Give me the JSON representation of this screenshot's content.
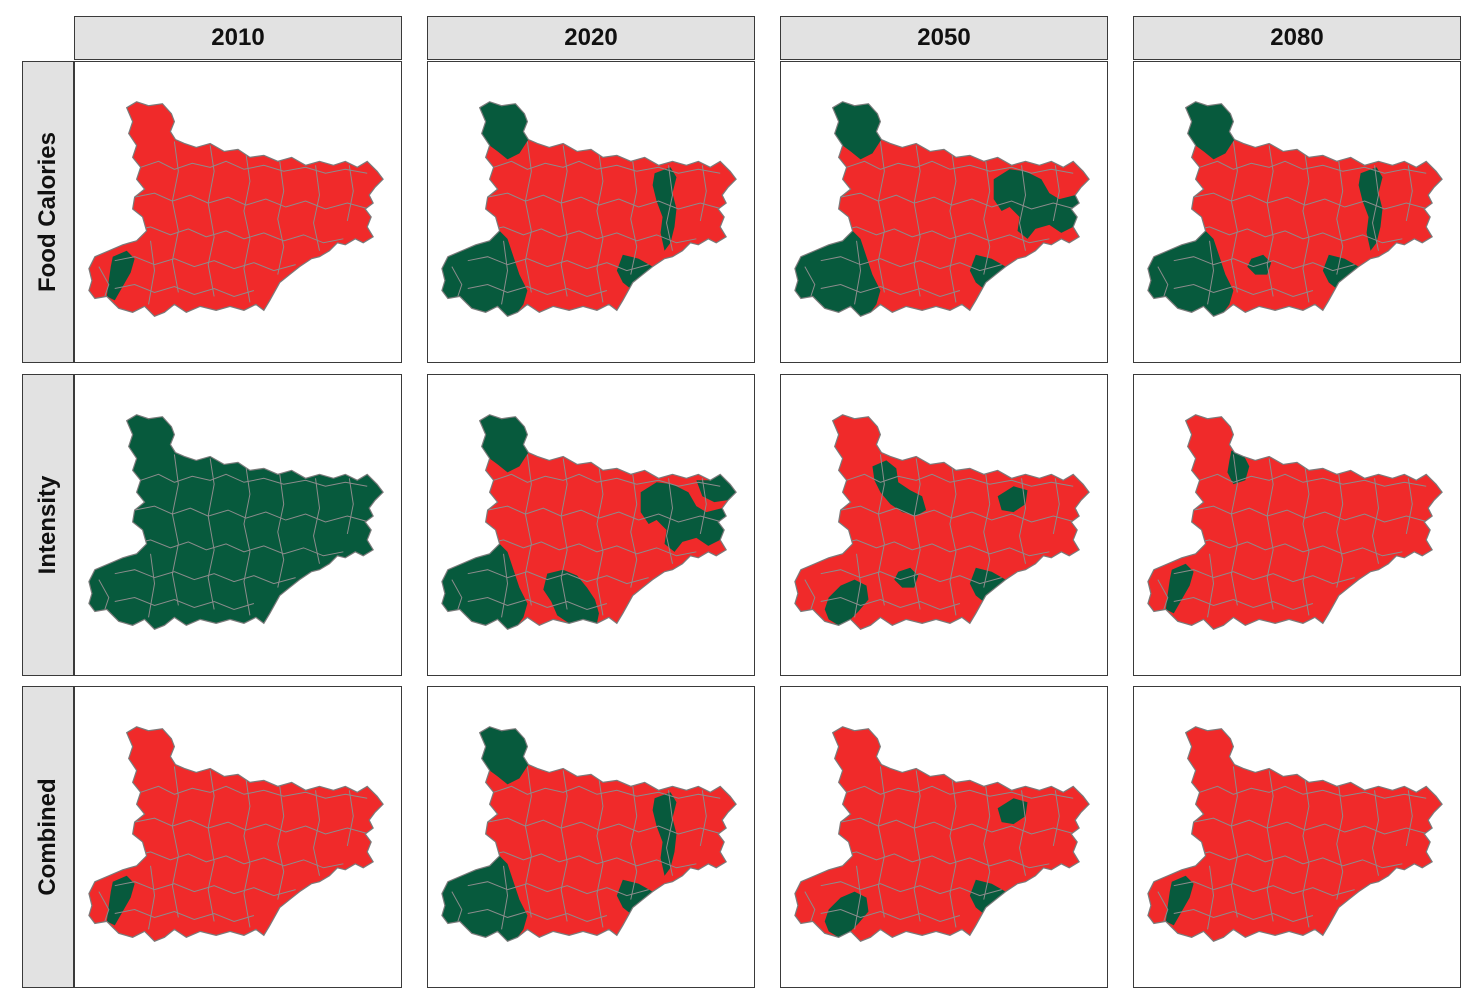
{
  "columns": [
    "2010",
    "2020",
    "2050",
    "2080"
  ],
  "rows": [
    "Food Calories",
    "Intensity",
    "Combined"
  ],
  "colors": {
    "red": "#f02a2a",
    "green": "#075a3d",
    "border": "#8c8c8c"
  },
  "panels": [
    [
      {
        "status": "mostly-red",
        "green_regions": [
          "south-west-pocket"
        ]
      },
      {
        "status": "mixed",
        "green_regions": [
          "north-west-tip",
          "west",
          "east-center-strip",
          "south-east"
        ]
      },
      {
        "status": "mixed",
        "green_regions": [
          "north-west-tip",
          "west",
          "east",
          "south-east"
        ]
      },
      {
        "status": "mixed",
        "green_regions": [
          "north-west-tip",
          "west",
          "east-center-strip",
          "south-east",
          "south-center-spot"
        ]
      }
    ],
    [
      {
        "status": "all-green",
        "green_regions": [
          "all"
        ]
      },
      {
        "status": "mostly-green",
        "green_regions": [
          "north-west-tip",
          "west",
          "south",
          "east",
          "north-east"
        ]
      },
      {
        "status": "mixed",
        "green_regions": [
          "north-center",
          "east-center",
          "south-west",
          "south-east",
          "south-center-spot"
        ]
      },
      {
        "status": "mostly-red",
        "green_regions": [
          "north-center-spot",
          "south-west-pocket"
        ]
      }
    ],
    [
      {
        "status": "mostly-red",
        "green_regions": [
          "south-west-pocket"
        ]
      },
      {
        "status": "mixed",
        "green_regions": [
          "north-west-tip",
          "west",
          "east-center-strip",
          "south-east"
        ]
      },
      {
        "status": "mostly-red",
        "green_regions": [
          "east-center",
          "south-west",
          "south-east"
        ]
      },
      {
        "status": "mostly-red",
        "green_regions": [
          "south-west-pocket"
        ]
      }
    ]
  ]
}
